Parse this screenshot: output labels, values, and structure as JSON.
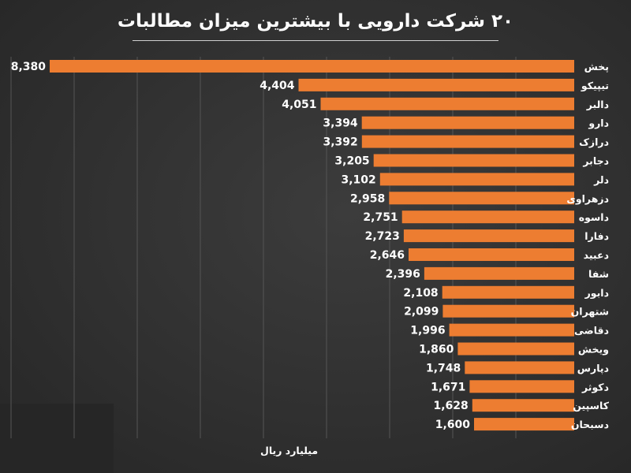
{
  "chart_data": {
    "type": "bar",
    "orientation": "horizontal",
    "title": "۲۰ شرکت دارویی با بیشترین میزان مطالبات",
    "unit_label": "میلیارد ریال",
    "categories": [
      "پخش",
      "تیپیکو",
      "دالبر",
      "دارو",
      "درازک",
      "دجابر",
      "دلر",
      "دزهراوی",
      "داسوه",
      "دفارا",
      "دعبید",
      "شفا",
      "دابور",
      "شتهران",
      "دقاضی",
      "ویخش",
      "دپارس",
      "دکوثر",
      "کاسپین",
      "دسبحان"
    ],
    "values": [
      8380,
      4404,
      4051,
      3394,
      3392,
      3205,
      3102,
      2958,
      2751,
      2723,
      2646,
      2396,
      2108,
      2099,
      1996,
      1860,
      1748,
      1671,
      1628,
      1600
    ],
    "value_labels": [
      "8,380",
      "4,404",
      "4,051",
      "3,394",
      "3,392",
      "3,205",
      "3,102",
      "2,958",
      "2,751",
      "2,723",
      "2,646",
      "2,396",
      "2,108",
      "2,099",
      "1,996",
      "1,860",
      "1,748",
      "1,671",
      "1,628",
      "1,600"
    ],
    "xlim": [
      0,
      8380
    ],
    "bar_direction": "right-to-left",
    "grid": true,
    "legend": "none",
    "bar_color": "#ED7D31",
    "grid_color": "#555555"
  }
}
